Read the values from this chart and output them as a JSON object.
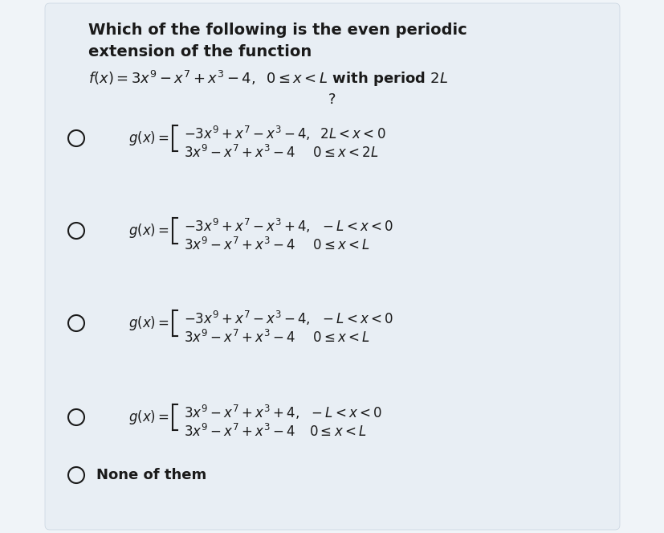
{
  "outer_bg": "#f0f4f8",
  "panel_bg": "#e8eef4",
  "text_color": "#1a1a1a",
  "title_line1": "Which of the following is the even periodic",
  "title_line2": "extension of the function",
  "func_text": "$f(x)=3x^9-x^7+x^3-4,\\;\\;0\\leq x<L$ with period $2L$",
  "question_mark": "?",
  "options": [
    {
      "top_math": "$-3x^9+x^7-x^3-4,\\;\\;2L<x<0$",
      "bot_math": "$3x^9-x^7+x^3-4\\;\\;\\;\\;\\;0\\leq x<2L$"
    },
    {
      "top_math": "$-3x^9+x^7-x^3+4,\\;\\;-L<x<0$",
      "bot_math": "$3x^9-x^7+x^3-4\\;\\;\\;\\;\\;0\\leq x<L$"
    },
    {
      "top_math": "$-3x^9+x^7-x^3-4,\\;\\;-L<x<0$",
      "bot_math": "$3x^9-x^7+x^3-4\\;\\;\\;\\;\\;0\\leq x<L$"
    },
    {
      "top_math": "$3x^9-x^7+x^3+4,\\;\\;-L<x<0$",
      "bot_math": "$3x^9-x^7+x^3-4\\;\\;\\;\\;0\\leq x<L$"
    }
  ],
  "none_text": "None of them",
  "fs_title": 14,
  "fs_func": 13,
  "fs_option": 12,
  "fs_none": 13
}
